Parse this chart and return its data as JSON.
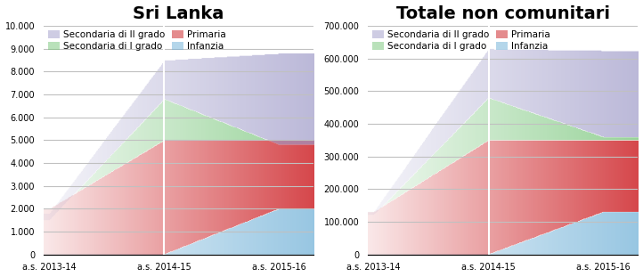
{
  "left": {
    "title": "Sri Lanka",
    "ylim": [
      0,
      10000
    ],
    "yticks": [
      0,
      1000,
      2000,
      3000,
      4000,
      5000,
      6000,
      7000,
      8000,
      9000,
      10000
    ],
    "ytick_labels": [
      "0",
      "1.000",
      "2.000",
      "3.000",
      "4.000",
      "5.000",
      "6.000",
      "7.000",
      "8.000",
      "9.000",
      "10.000"
    ],
    "x": [
      0,
      1,
      2
    ],
    "xlabels": [
      "a.s. 2013-14",
      "a.s. 2014-15",
      "a.s. 2015-16"
    ],
    "infanzia": [
      0,
      0,
      2000
    ],
    "primaria": [
      2000,
      5000,
      5000
    ],
    "sec1": [
      1500,
      6800,
      4800
    ],
    "sec2": [
      1800,
      8500,
      8800
    ]
  },
  "right": {
    "title": "Totale non comunitari",
    "ylim": [
      0,
      700000
    ],
    "yticks": [
      0,
      100000,
      200000,
      300000,
      400000,
      500000,
      600000,
      700000
    ],
    "ytick_labels": [
      "0",
      "100.000",
      "200.000",
      "300.000",
      "400.000",
      "500.000",
      "600.000",
      "700.000"
    ],
    "x": [
      0,
      1,
      2
    ],
    "xlabels": [
      "a.s. 2013-14",
      "a.s. 2014-15",
      "a.s. 2015-16"
    ],
    "infanzia": [
      0,
      0,
      130000
    ],
    "primaria": [
      130000,
      350000,
      350000
    ],
    "sec1": [
      120000,
      480000,
      360000
    ],
    "sec2": [
      130000,
      630000,
      625000
    ]
  },
  "colors": {
    "infanzia": [
      107,
      174,
      214
    ],
    "primaria": [
      203,
      24,
      29
    ],
    "sec1": [
      116,
      196,
      118
    ],
    "sec2": [
      158,
      154,
      200
    ]
  },
  "legend": {
    "sec2_label": "Secondaria di II grado",
    "sec1_label": "Secondaria di I grado",
    "primaria_label": "Primaria",
    "infanzia_label": "Infanzia"
  },
  "title_fontsize": 14,
  "tick_fontsize": 7,
  "legend_fontsize": 7.5,
  "bg_color": "#ffffff",
  "grid_color": "#c0c0c0"
}
